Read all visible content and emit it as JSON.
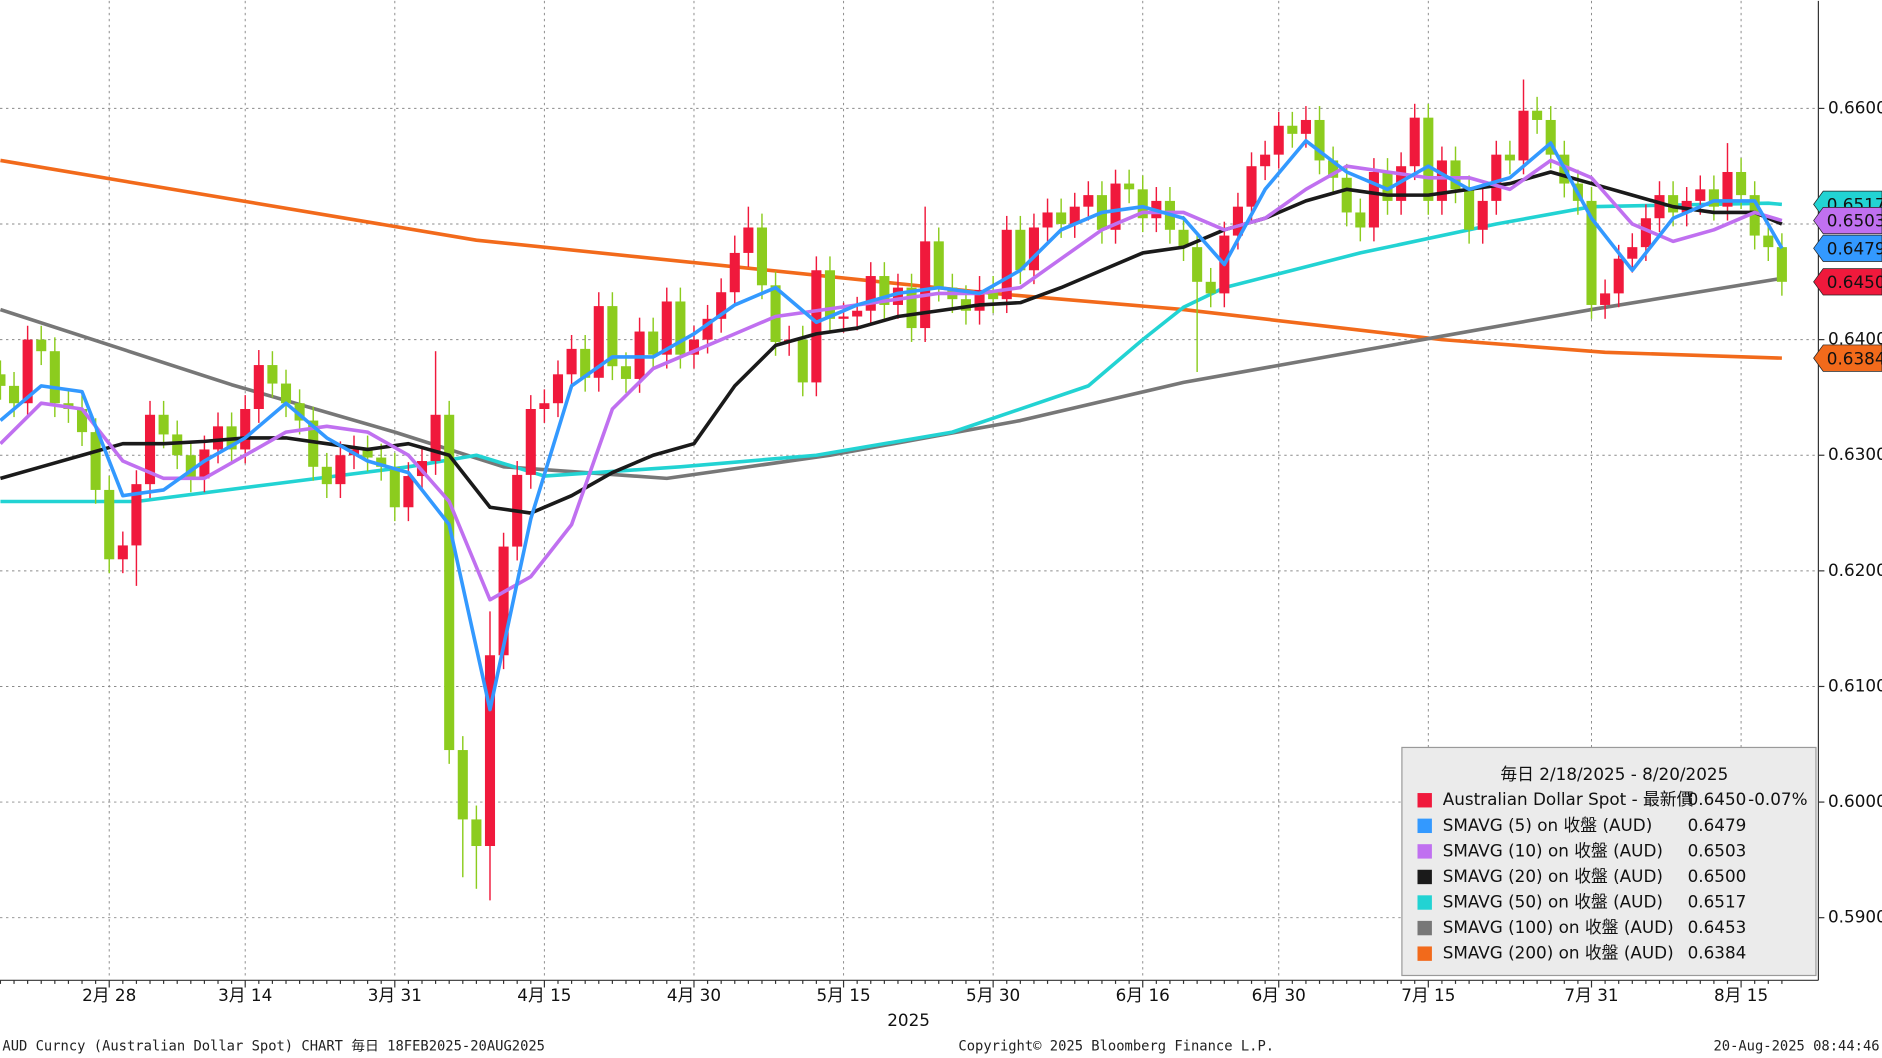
{
  "chart_data": {
    "type": "candlestick",
    "x_label": "2025",
    "legend_title": "毎日 2/18/2025 - 8/20/2025",
    "footer": {
      "left": "AUD Curncy (Australian Dollar Spot) CHART  毎日 18FEB2025-20AUG2025",
      "center": "Copyright© 2025 Bloomberg Finance L.P.",
      "right": "20-Aug-2025 08:44:46"
    },
    "ylim": [
      0.585,
      0.6693
    ],
    "yticks": [
      {
        "value": 0.59,
        "label": "0.5900"
      },
      {
        "value": 0.6,
        "label": "0.6000"
      },
      {
        "value": 0.61,
        "label": "0.6100"
      },
      {
        "value": 0.62,
        "label": "0.6200"
      },
      {
        "value": 0.63,
        "label": "0.6300"
      },
      {
        "value": 0.64,
        "label": "0.6400"
      },
      {
        "value": 0.65,
        "label": "0.6500"
      },
      {
        "value": 0.66,
        "label": "0.6600"
      }
    ],
    "grid": true,
    "categories": [
      null,
      null,
      null,
      null,
      null,
      null,
      null,
      null,
      "2月 28",
      null,
      null,
      null,
      null,
      null,
      null,
      null,
      null,
      null,
      "3月 14",
      null,
      null,
      null,
      null,
      null,
      null,
      null,
      null,
      null,
      null,
      "3月 31",
      null,
      null,
      null,
      null,
      null,
      null,
      null,
      null,
      null,
      null,
      "4月 15",
      null,
      null,
      null,
      null,
      null,
      null,
      null,
      null,
      null,
      null,
      "4月 30",
      null,
      null,
      null,
      null,
      null,
      null,
      null,
      null,
      null,
      null,
      "5月 15",
      null,
      null,
      null,
      null,
      null,
      null,
      null,
      null,
      null,
      null,
      "5月 30",
      null,
      null,
      null,
      null,
      null,
      null,
      null,
      null,
      null,
      null,
      "6月 16",
      null,
      null,
      null,
      null,
      null,
      null,
      null,
      null,
      null,
      "6月 30",
      null,
      null,
      null,
      null,
      null,
      null,
      null,
      null,
      null,
      null,
      "7月 15",
      null,
      null,
      null,
      null,
      null,
      null,
      null,
      null,
      null,
      null,
      null,
      "7月 31",
      null,
      null,
      null,
      null,
      null,
      null,
      null,
      null,
      null,
      null,
      "8月 15",
      null,
      null,
      null
    ],
    "series": [
      {
        "name": "Australian Dollar Spot - 最新價",
        "type": "candlestick",
        "color": "#f0193c",
        "up_color": "#f0193c",
        "down_color": "#8ccc1e",
        "last_label": "0.6450",
        "change": "-0.07%",
        "axis_tag": true,
        "tag_text": "#ffffff",
        "open": [
          0.637,
          0.636,
          0.6345,
          0.64,
          0.639,
          0.6345,
          0.634,
          0.632,
          0.627,
          0.621,
          0.6222,
          0.6275,
          0.6335,
          0.6318,
          0.63,
          0.628,
          0.6305,
          0.6325,
          0.6305,
          0.634,
          0.6378,
          0.6362,
          0.6345,
          0.633,
          0.629,
          0.6275,
          0.63,
          0.6305,
          0.6298,
          0.629,
          0.6255,
          0.6282,
          0.6295,
          0.6335,
          0.6045,
          0.5985,
          0.5962,
          0.6127,
          0.6221,
          0.6283,
          0.634,
          0.6345,
          0.637,
          0.6392,
          0.6367,
          0.6429,
          0.6377,
          0.6366,
          0.6407,
          0.6387,
          0.6433,
          0.6387,
          0.64,
          0.6418,
          0.6441,
          0.6475,
          0.6497,
          0.6447,
          0.6398,
          0.64,
          0.6363,
          0.646,
          0.6418,
          0.642,
          0.6425,
          0.6455,
          0.643,
          0.6445,
          0.641,
          0.6485,
          0.6445,
          0.6435,
          0.6425,
          0.6443,
          0.6435,
          0.6495,
          0.646,
          0.6497,
          0.651,
          0.65,
          0.6515,
          0.6525,
          0.6495,
          0.6535,
          0.653,
          0.6505,
          0.652,
          0.6495,
          0.648,
          0.645,
          0.644,
          0.649,
          0.6515,
          0.655,
          0.656,
          0.6585,
          0.6578,
          0.659,
          0.6555,
          0.654,
          0.651,
          0.6497,
          0.6545,
          0.652,
          0.655,
          0.6592,
          0.652,
          0.6555,
          0.653,
          0.6495,
          0.652,
          0.656,
          0.6555,
          0.6598,
          0.659,
          0.656,
          0.6535,
          0.652,
          0.643,
          0.644,
          0.647,
          0.648,
          0.6505,
          0.6525,
          0.651,
          0.652,
          0.653,
          0.6515,
          0.6545,
          0.6525,
          0.649,
          0.648
        ],
        "high": [
          0.6382,
          0.6372,
          0.6412,
          0.6412,
          0.6402,
          0.6357,
          0.6352,
          0.6332,
          0.6282,
          0.6234,
          0.6287,
          0.6347,
          0.6347,
          0.633,
          0.6312,
          0.6317,
          0.6337,
          0.6337,
          0.6352,
          0.6391,
          0.639,
          0.6374,
          0.6357,
          0.6342,
          0.6302,
          0.6312,
          0.6317,
          0.6317,
          0.631,
          0.6302,
          0.6294,
          0.6307,
          0.639,
          0.6347,
          0.6057,
          0.5997,
          0.6165,
          0.6233,
          0.6295,
          0.6352,
          0.6357,
          0.6382,
          0.6404,
          0.6404,
          0.6441,
          0.6441,
          0.6389,
          0.6419,
          0.6419,
          0.6445,
          0.6445,
          0.6412,
          0.643,
          0.6453,
          0.649,
          0.6515,
          0.6509,
          0.6459,
          0.6412,
          0.6412,
          0.6472,
          0.6472,
          0.6432,
          0.6437,
          0.6467,
          0.6467,
          0.6457,
          0.6457,
          0.6515,
          0.6497,
          0.6457,
          0.6447,
          0.6455,
          0.6455,
          0.6507,
          0.6507,
          0.6509,
          0.6522,
          0.6522,
          0.6527,
          0.6537,
          0.6537,
          0.6547,
          0.6547,
          0.6542,
          0.6532,
          0.6532,
          0.6507,
          0.6492,
          0.6462,
          0.6502,
          0.6527,
          0.6562,
          0.6572,
          0.6597,
          0.6597,
          0.6602,
          0.6602,
          0.6567,
          0.6552,
          0.6522,
          0.6557,
          0.6557,
          0.6562,
          0.6604,
          0.6604,
          0.6567,
          0.6567,
          0.6542,
          0.6532,
          0.6572,
          0.6572,
          0.6625,
          0.661,
          0.6602,
          0.6572,
          0.6547,
          0.6532,
          0.6452,
          0.6482,
          0.6492,
          0.6517,
          0.6537,
          0.6537,
          0.6532,
          0.6542,
          0.6542,
          0.657,
          0.6557,
          0.6537,
          0.6502,
          0.6492
        ],
        "low": [
          0.6348,
          0.6333,
          0.6333,
          0.6378,
          0.6333,
          0.6328,
          0.6308,
          0.6258,
          0.6198,
          0.6198,
          0.6187,
          0.6263,
          0.6306,
          0.6288,
          0.6268,
          0.6268,
          0.6293,
          0.6293,
          0.6293,
          0.6328,
          0.635,
          0.6333,
          0.6318,
          0.6278,
          0.6263,
          0.6263,
          0.6288,
          0.6286,
          0.6278,
          0.6243,
          0.6243,
          0.627,
          0.6283,
          0.6033,
          0.5935,
          0.5925,
          0.5915,
          0.6115,
          0.6209,
          0.6271,
          0.6328,
          0.6333,
          0.6358,
          0.6355,
          0.6355,
          0.6365,
          0.6354,
          0.6354,
          0.6375,
          0.6375,
          0.6375,
          0.6375,
          0.6388,
          0.6406,
          0.6429,
          0.6463,
          0.6435,
          0.6386,
          0.6386,
          0.6351,
          0.6351,
          0.6406,
          0.6406,
          0.6408,
          0.6413,
          0.6418,
          0.6418,
          0.6398,
          0.6398,
          0.6433,
          0.6423,
          0.6413,
          0.6413,
          0.6423,
          0.6423,
          0.6448,
          0.6448,
          0.6485,
          0.6488,
          0.6488,
          0.6503,
          0.6483,
          0.6483,
          0.6518,
          0.6493,
          0.6493,
          0.6483,
          0.6468,
          0.6372,
          0.6428,
          0.6428,
          0.6478,
          0.6503,
          0.6538,
          0.6548,
          0.6566,
          0.6566,
          0.6543,
          0.6528,
          0.6498,
          0.6485,
          0.6485,
          0.6508,
          0.6508,
          0.6538,
          0.6508,
          0.6508,
          0.6518,
          0.6483,
          0.6483,
          0.6508,
          0.6543,
          0.6543,
          0.6578,
          0.6548,
          0.6523,
          0.6508,
          0.6418,
          0.6418,
          0.6428,
          0.6458,
          0.6468,
          0.6493,
          0.6498,
          0.6498,
          0.6508,
          0.6503,
          0.6503,
          0.6513,
          0.6478,
          0.6468,
          0.6438
        ],
        "close": [
          0.636,
          0.6345,
          0.64,
          0.639,
          0.6345,
          0.634,
          0.632,
          0.627,
          0.621,
          0.6222,
          0.6275,
          0.6335,
          0.6318,
          0.63,
          0.628,
          0.6305,
          0.6325,
          0.6305,
          0.634,
          0.6378,
          0.6362,
          0.6345,
          0.633,
          0.629,
          0.6275,
          0.63,
          0.6305,
          0.6298,
          0.629,
          0.6255,
          0.6282,
          0.6295,
          0.6335,
          0.6045,
          0.5985,
          0.5962,
          0.6127,
          0.6221,
          0.6283,
          0.634,
          0.6345,
          0.637,
          0.6392,
          0.6367,
          0.6429,
          0.6377,
          0.6366,
          0.6407,
          0.6387,
          0.6433,
          0.6387,
          0.64,
          0.6418,
          0.6441,
          0.6475,
          0.6497,
          0.6447,
          0.6398,
          0.64,
          0.6363,
          0.646,
          0.6418,
          0.642,
          0.6425,
          0.6455,
          0.643,
          0.6445,
          0.641,
          0.6485,
          0.6445,
          0.6435,
          0.6425,
          0.6443,
          0.6435,
          0.6495,
          0.646,
          0.6497,
          0.651,
          0.65,
          0.6515,
          0.6525,
          0.6495,
          0.6535,
          0.653,
          0.6505,
          0.652,
          0.6495,
          0.648,
          0.645,
          0.644,
          0.649,
          0.6515,
          0.655,
          0.656,
          0.6585,
          0.6578,
          0.659,
          0.6555,
          0.654,
          0.651,
          0.6497,
          0.6545,
          0.652,
          0.655,
          0.6592,
          0.652,
          0.6555,
          0.653,
          0.6495,
          0.652,
          0.656,
          0.6555,
          0.6598,
          0.659,
          0.656,
          0.6535,
          0.652,
          0.643,
          0.644,
          0.647,
          0.648,
          0.6505,
          0.6525,
          0.651,
          0.652,
          0.653,
          0.6515,
          0.6545,
          0.6525,
          0.649,
          0.648,
          0.645
        ]
      },
      {
        "name": "SMAVG (5)  on 收盤 (AUD)",
        "type": "line",
        "color": "#3399ff",
        "last_label": "0.6479",
        "axis_tag": true,
        "tag_text": "#111111",
        "x": [
          0,
          3,
          6,
          9,
          12,
          15,
          18,
          21,
          24,
          27,
          30,
          33,
          36,
          39,
          42,
          45,
          48,
          51,
          54,
          57,
          60,
          63,
          66,
          69,
          72,
          75,
          78,
          81,
          84,
          87,
          90,
          93,
          96,
          99,
          102,
          105,
          108,
          111,
          114,
          117,
          120,
          123,
          126,
          129,
          131
        ],
        "values": [
          0.633,
          0.636,
          0.6355,
          0.6265,
          0.627,
          0.6295,
          0.6315,
          0.6345,
          0.6315,
          0.6295,
          0.6285,
          0.624,
          0.608,
          0.6245,
          0.636,
          0.6385,
          0.6385,
          0.6405,
          0.643,
          0.6445,
          0.6415,
          0.643,
          0.644,
          0.6445,
          0.644,
          0.646,
          0.6495,
          0.651,
          0.6515,
          0.6505,
          0.6465,
          0.653,
          0.6572,
          0.6545,
          0.653,
          0.655,
          0.653,
          0.654,
          0.657,
          0.6505,
          0.646,
          0.6505,
          0.652,
          0.652,
          0.6479
        ]
      },
      {
        "name": "SMAVG (10)  on 收盤 (AUD)",
        "type": "line",
        "color": "#c070f0",
        "last_label": "0.6503",
        "axis_tag": true,
        "tag_text": "#111111",
        "x": [
          0,
          3,
          6,
          9,
          12,
          15,
          18,
          21,
          24,
          27,
          30,
          33,
          36,
          39,
          42,
          45,
          48,
          51,
          54,
          57,
          60,
          63,
          66,
          69,
          72,
          75,
          78,
          81,
          84,
          87,
          90,
          93,
          96,
          99,
          102,
          105,
          108,
          111,
          114,
          117,
          120,
          123,
          126,
          129,
          131
        ],
        "values": [
          0.631,
          0.6345,
          0.634,
          0.6295,
          0.628,
          0.628,
          0.63,
          0.632,
          0.6325,
          0.632,
          0.63,
          0.626,
          0.6175,
          0.6195,
          0.624,
          0.634,
          0.6375,
          0.639,
          0.6405,
          0.642,
          0.6425,
          0.643,
          0.6435,
          0.644,
          0.644,
          0.6445,
          0.647,
          0.6495,
          0.651,
          0.651,
          0.6495,
          0.6505,
          0.653,
          0.655,
          0.6545,
          0.654,
          0.654,
          0.653,
          0.6555,
          0.654,
          0.65,
          0.6485,
          0.6495,
          0.651,
          0.6503
        ]
      },
      {
        "name": "SMAVG (20)  on 收盤 (AUD)",
        "type": "line",
        "color": "#1a1a1a",
        "last_label": "0.6500",
        "axis_tag": false,
        "x": [
          0,
          3,
          6,
          9,
          12,
          15,
          18,
          21,
          24,
          27,
          30,
          33,
          36,
          39,
          42,
          45,
          48,
          51,
          54,
          57,
          60,
          63,
          66,
          69,
          72,
          75,
          78,
          81,
          84,
          87,
          90,
          93,
          96,
          99,
          102,
          105,
          108,
          111,
          114,
          117,
          120,
          123,
          126,
          129,
          131
        ],
        "values": [
          0.628,
          0.629,
          0.63,
          0.631,
          0.631,
          0.6312,
          0.6315,
          0.6315,
          0.631,
          0.6305,
          0.631,
          0.63,
          0.6255,
          0.625,
          0.6265,
          0.6285,
          0.63,
          0.631,
          0.636,
          0.6395,
          0.6405,
          0.641,
          0.642,
          0.6425,
          0.643,
          0.6432,
          0.6445,
          0.646,
          0.6475,
          0.648,
          0.6495,
          0.6505,
          0.652,
          0.653,
          0.6525,
          0.6525,
          0.653,
          0.6535,
          0.6545,
          0.6535,
          0.6525,
          0.6515,
          0.651,
          0.651,
          0.65
        ]
      },
      {
        "name": "SMAVG (50)  on 收盤 (AUD)",
        "type": "line",
        "color": "#22d3d3",
        "last_label": "0.6517",
        "axis_tag": true,
        "tag_text": "#111111",
        "x": [
          0,
          10,
          20,
          30,
          35,
          40,
          50,
          60,
          70,
          80,
          84,
          87,
          90,
          100,
          110,
          117,
          130,
          131
        ],
        "values": [
          0.626,
          0.626,
          0.6275,
          0.629,
          0.63,
          0.6282,
          0.629,
          0.63,
          0.632,
          0.636,
          0.64,
          0.6428,
          0.6445,
          0.6475,
          0.65,
          0.6515,
          0.6518,
          0.6517
        ]
      },
      {
        "name": "SMAVG (100)  on 收盤 (AUD)",
        "type": "line",
        "color": "#777777",
        "last_label": "0.6453",
        "axis_tag": false,
        "x": [
          0,
          17,
          29,
          37,
          49,
          61,
          75,
          87,
          106,
          117,
          131
        ],
        "values": [
          0.6426,
          0.6361,
          0.632,
          0.629,
          0.628,
          0.63,
          0.633,
          0.6363,
          0.6403,
          0.6426,
          0.6453
        ]
      },
      {
        "name": "SMAVG (200)  on 收盤 (AUD)",
        "type": "line",
        "color": "#f26a1b",
        "last_label": "0.6384",
        "axis_tag": true,
        "tag_text": "#111111",
        "x": [
          0,
          35,
          73,
          87,
          106,
          118,
          131
        ],
        "values": [
          0.6555,
          0.6486,
          0.644,
          0.6426,
          0.64,
          0.6389,
          0.6384
        ]
      }
    ]
  }
}
